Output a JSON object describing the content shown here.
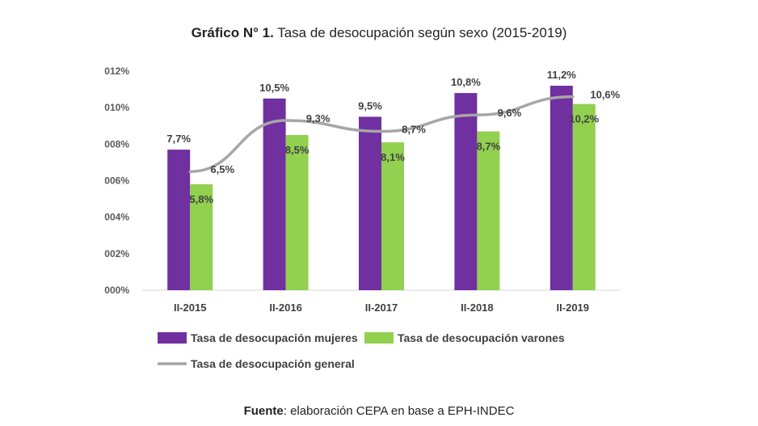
{
  "title": {
    "prefix": "Gráfico N° 1.",
    "text": "Tasa de desocupación según sexo (2015-2019)"
  },
  "source": {
    "prefix": "Fuente",
    "text": ": elaboración CEPA en base a EPH-INDEC"
  },
  "colors": {
    "mujeres": "#7030a0",
    "varones": "#92d050",
    "general": "#a6a6a6",
    "axis": "#d9d9d9"
  },
  "chart_data": {
    "type": "bar",
    "title": "Gráfico N° 1. Tasa de desocupación según sexo (2015-2019)",
    "categories": [
      "II-2015",
      "II-2016",
      "II-2017",
      "II-2018",
      "II-2019"
    ],
    "ylim": [
      0,
      12
    ],
    "yticks": [
      0,
      2,
      4,
      6,
      8,
      10,
      12
    ],
    "ytick_labels": [
      "000%",
      "002%",
      "004%",
      "006%",
      "008%",
      "010%",
      "012%"
    ],
    "series": [
      {
        "name": "Tasa de desocupación mujeres",
        "kind": "bar",
        "values": [
          7.7,
          10.5,
          9.5,
          10.8,
          11.2
        ],
        "labels": [
          "7,7%",
          "10,5%",
          "9,5%",
          "10,8%",
          "11,2%"
        ]
      },
      {
        "name": "Tasa de desocupación varones",
        "kind": "bar",
        "values": [
          5.8,
          8.5,
          8.1,
          8.7,
          10.2
        ],
        "labels": [
          "5,8%",
          "8,5%",
          "8,1%",
          "8,7%",
          "10,2%"
        ]
      },
      {
        "name": "Tasa de desocupación general",
        "kind": "line",
        "values": [
          6.5,
          9.3,
          8.7,
          9.6,
          10.6
        ],
        "labels": [
          "6,5%",
          "9,3%",
          "8,7%",
          "9,6%",
          "10,6%"
        ]
      }
    ],
    "legend": "bottom"
  }
}
